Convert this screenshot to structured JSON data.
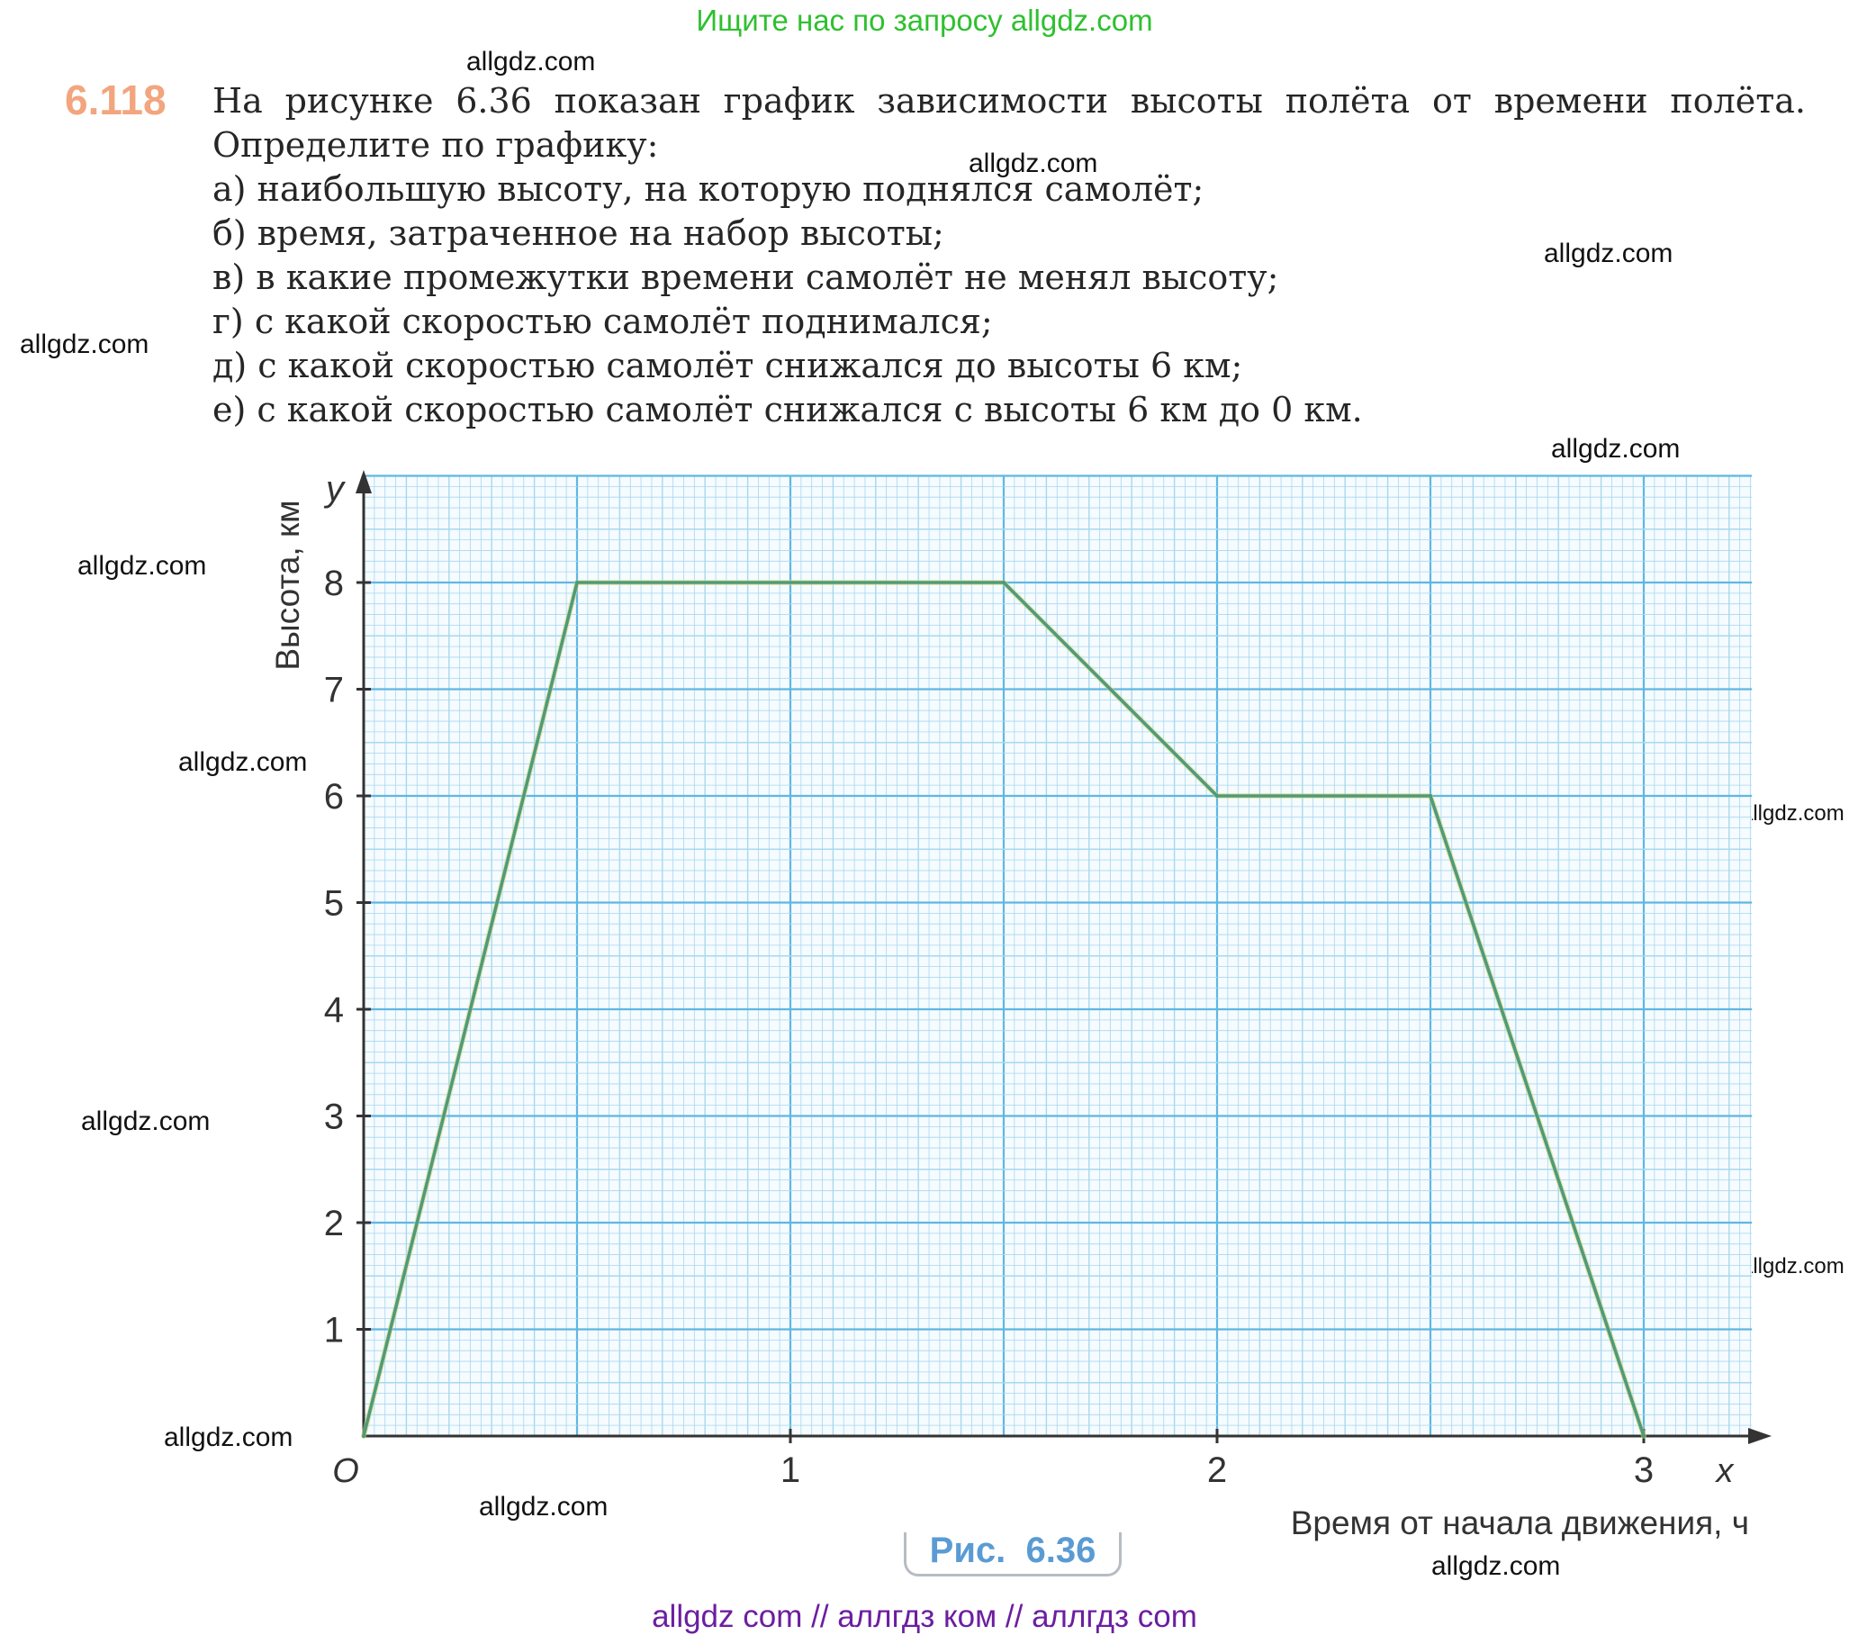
{
  "top_banner": "Ищите нас по запросу allgdz.com",
  "bottom_banner": "allgdz com  //  аллгдз ком  //  аллгдз com",
  "watermark": "allgdz.com",
  "problem": {
    "number": "6.118",
    "intro": "На рисунке 6.36 показан график зависимости высоты полёта от времени полёта. Определите по графику:",
    "items": [
      "а) наибольшую высоту, на которую поднялся самолёт;",
      "б) время, затраченное на набор высоты;",
      "в) в какие промежутки времени самолёт не менял высоту;",
      "г) с какой скоростью самолёт поднимался;",
      "д) с какой скоростью самолёт снижался до высоты 6 км;",
      "е) с какой скоростью самолёт снижался с высоты 6 км до 0 км."
    ]
  },
  "figure_caption": "Рис.  6.36",
  "chart_data": {
    "type": "line",
    "title": "",
    "xlabel": "Время от начала движения, ч",
    "ylabel": "Высота, км",
    "x_axis_letter": "x",
    "y_axis_letter": "y",
    "origin_label": "O",
    "xlim": [
      0,
      3.25
    ],
    "ylim": [
      0,
      9
    ],
    "x_ticks": [
      1,
      2,
      3
    ],
    "y_ticks": [
      1,
      2,
      3,
      4,
      5,
      6,
      7,
      8
    ],
    "grid": true,
    "colors": {
      "grid_minor": "#a8d8ef",
      "grid_major": "#5fb7e2",
      "line": "#4f9a7c",
      "axis": "#333333"
    },
    "series": [
      {
        "x": [
          0,
          0.5,
          1.5,
          2.0,
          2.5,
          3.0
        ],
        "y": [
          0,
          8,
          8,
          6,
          6,
          0
        ]
      }
    ]
  }
}
